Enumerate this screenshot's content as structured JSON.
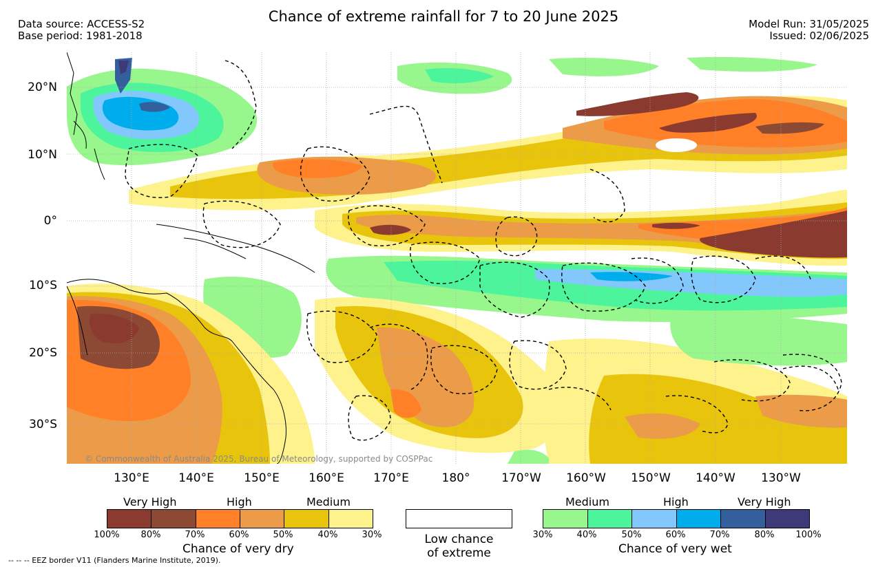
{
  "title": "Chance of extreme rainfall for 7 to 20 June 2025",
  "header_left": {
    "line1": "Data source: ACCESS-S2",
    "line2": "Base period: 1981-2018"
  },
  "header_right": {
    "line1": "Model Run: 31/05/2025",
    "line2": "Issued: 02/06/2025"
  },
  "map": {
    "lat_labels": [
      "20°N",
      "10°N",
      "0°",
      "10°S",
      "20°S",
      "30°S"
    ],
    "lon_labels": [
      "130°E",
      "140°E",
      "150°E",
      "160°E",
      "170°E",
      "180°",
      "170°W",
      "160°W",
      "150°W",
      "140°W",
      "130°W"
    ],
    "copyright": "© Commonwealth of Australia 2025, Bureau of Meteorology, supported by COSPPac"
  },
  "legend_dry": {
    "levels": [
      "Very High",
      "High",
      "Medium"
    ],
    "ticks": [
      "100%",
      "80%",
      "70%",
      "60%",
      "50%",
      "40%",
      "30%"
    ],
    "colors": [
      "#8a3a2e",
      "#8c4a35",
      "#ff8027",
      "#ec9b48",
      "#e8c40c",
      "#fdf28b"
    ],
    "title": "Chance of very dry"
  },
  "legend_low": {
    "line1": "Low chance",
    "line2": "of extreme"
  },
  "legend_wet": {
    "levels": [
      "Medium",
      "High",
      "Very High"
    ],
    "ticks": [
      "30%",
      "40%",
      "50%",
      "60%",
      "70%",
      "80%",
      "100%"
    ],
    "colors": [
      "#98f78c",
      "#4cf59b",
      "#82c8fd",
      "#00adec",
      "#335f9c",
      "#3e3a7a"
    ],
    "title": "Chance of very wet"
  },
  "footnote": "--  --  -- EEZ border V11 (Flanders Marine Institute, 2019)."
}
